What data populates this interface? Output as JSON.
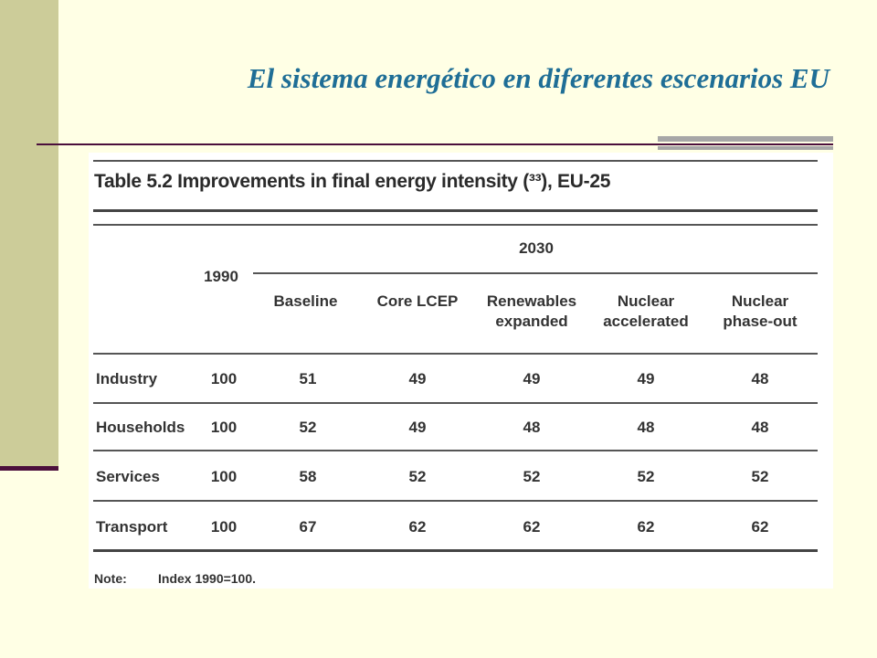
{
  "slide": {
    "title": "El sistema energético en diferentes escenarios EU"
  },
  "table": {
    "caption": "Table 5.2   Improvements in final energy intensity (³³), EU-25",
    "year_base": "1990",
    "year_group": "2030",
    "columns": [
      "Baseline",
      "Core LCEP",
      "Renewables\nexpanded",
      "Nuclear\naccelerated",
      "Nuclear\nphase-out"
    ],
    "rows": [
      {
        "label": "Industry",
        "values": [
          "100",
          "51",
          "49",
          "49",
          "49",
          "48"
        ]
      },
      {
        "label": "Households",
        "values": [
          "100",
          "52",
          "49",
          "48",
          "48",
          "48"
        ]
      },
      {
        "label": "Services",
        "values": [
          "100",
          "58",
          "52",
          "52",
          "52",
          "52"
        ]
      },
      {
        "label": "Transport",
        "values": [
          "100",
          "67",
          "62",
          "62",
          "62",
          "62"
        ]
      }
    ],
    "note_label": "Note:",
    "note_text": "Index 1990=100."
  },
  "colors": {
    "background": "#FFFFE5",
    "side_bar": "#CCCC99",
    "title": "#1F6E96",
    "accent": "#4B0F3C"
  }
}
